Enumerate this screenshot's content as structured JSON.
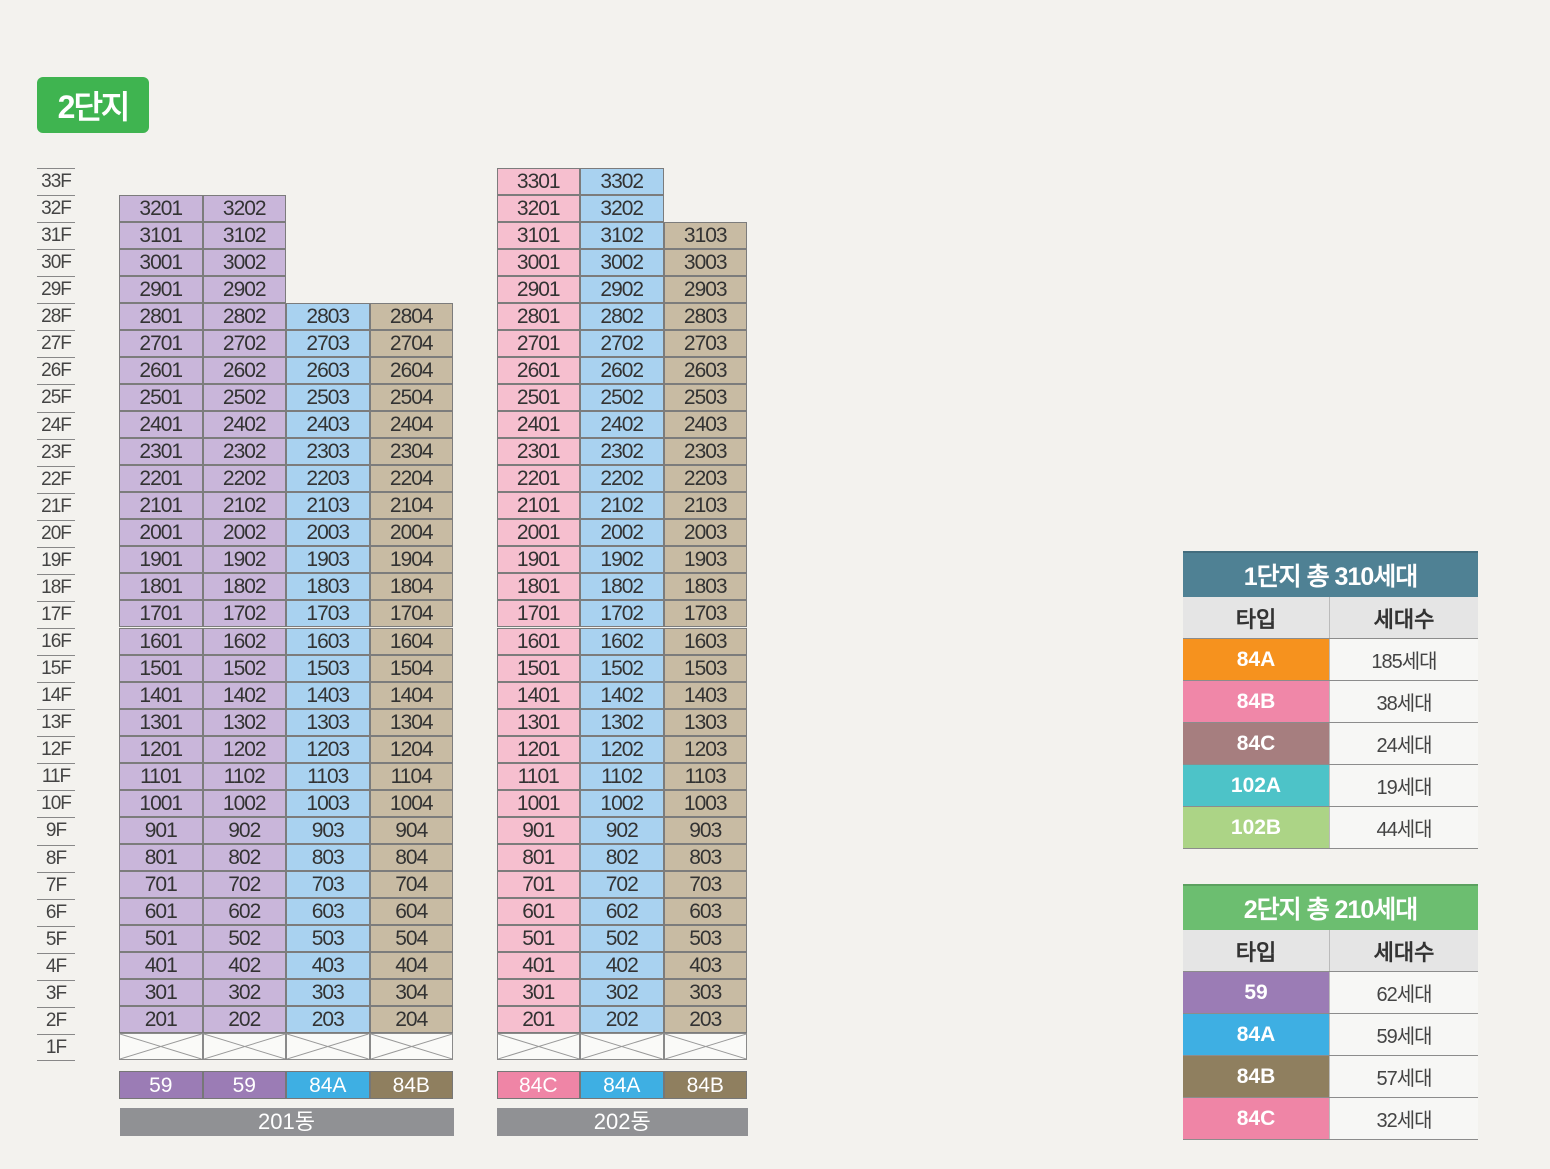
{
  "badge": "2단지",
  "floors": [
    "33F",
    "32F",
    "31F",
    "30F",
    "29F",
    "28F",
    "27F",
    "26F",
    "25F",
    "24F",
    "23F",
    "22F",
    "21F",
    "20F",
    "19F",
    "18F",
    "17F",
    "16F",
    "15F",
    "14F",
    "13F",
    "12F",
    "11F",
    "10F",
    "9F",
    "8F",
    "7F",
    "6F",
    "5F",
    "4F",
    "3F",
    "2F",
    "1F"
  ],
  "colors": {
    "lavender": "#c9b6da",
    "blue": "#a9d2f0",
    "tan": "#c8bba3",
    "pink": "#f6bfcf",
    "type_59": "#9b7cb5",
    "type_84A": "#3eafe3",
    "type_84B": "#8f7f5f",
    "type_84C": "#ef85a6"
  },
  "buildings": [
    {
      "name": "201동",
      "columns": [
        {
          "unit_suffix": 1,
          "top_floor": 32,
          "color": "lavender",
          "type": "59",
          "type_color": "type_59"
        },
        {
          "unit_suffix": 2,
          "top_floor": 32,
          "color": "lavender",
          "type": "59",
          "type_color": "type_59"
        },
        {
          "unit_suffix": 3,
          "top_floor": 28,
          "color": "blue",
          "type": "84A",
          "type_color": "type_84A"
        },
        {
          "unit_suffix": 4,
          "top_floor": 28,
          "color": "tan",
          "type": "84B",
          "type_color": "type_84B"
        }
      ]
    },
    {
      "name": "202동",
      "columns": [
        {
          "unit_suffix": 1,
          "top_floor": 33,
          "color": "pink",
          "type": "84C",
          "type_color": "type_84C"
        },
        {
          "unit_suffix": 2,
          "top_floor": 33,
          "color": "blue",
          "type": "84A",
          "type_color": "type_84A"
        },
        {
          "unit_suffix": 3,
          "top_floor": 31,
          "color": "tan",
          "type": "84B",
          "type_color": "type_84B"
        }
      ]
    }
  ],
  "legend1": {
    "title": "1단지 총 310세대",
    "header_color": "#4f8194",
    "col_type": "타입",
    "col_count": "세대수",
    "rows": [
      {
        "type": "84A",
        "count": "185세대",
        "color": "#f6921e"
      },
      {
        "type": "84B",
        "count": "38세대",
        "color": "#f087a8"
      },
      {
        "type": "84C",
        "count": "24세대",
        "color": "#a67e7f"
      },
      {
        "type": "102A",
        "count": "19세대",
        "color": "#4dc3c8"
      },
      {
        "type": "102B",
        "count": "44세대",
        "color": "#acd486"
      }
    ]
  },
  "legend2": {
    "title": "2단지 총 210세대",
    "header_color": "#6cbe70",
    "col_type": "타입",
    "col_count": "세대수",
    "rows": [
      {
        "type": "59",
        "count": "62세대",
        "color": "#9b7cb5"
      },
      {
        "type": "84A",
        "count": "59세대",
        "color": "#3eafe3"
      },
      {
        "type": "84B",
        "count": "57세대",
        "color": "#8f7f5f"
      },
      {
        "type": "84C",
        "count": "32세대",
        "color": "#ef85a6"
      }
    ]
  }
}
